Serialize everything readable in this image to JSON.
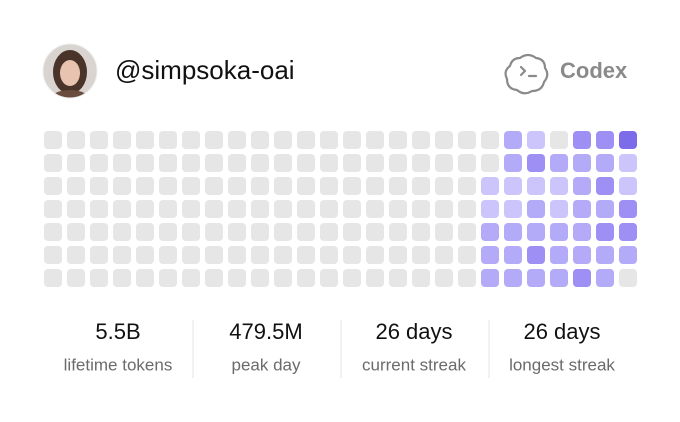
{
  "header": {
    "username": "@simpsoka-oai",
    "brand": "Codex"
  },
  "activity": {
    "palette": [
      "#e6e6e6",
      "#cbc5fb",
      "#b4abf8",
      "#9d8ff3",
      "#7d6ce9"
    ],
    "grid": [
      [
        0,
        0,
        0,
        0,
        0,
        0,
        0,
        0,
        0,
        0,
        0,
        0,
        0,
        0,
        0,
        0,
        0,
        0,
        0,
        0,
        2,
        1,
        0,
        3,
        3,
        4
      ],
      [
        0,
        0,
        0,
        0,
        0,
        0,
        0,
        0,
        0,
        0,
        0,
        0,
        0,
        0,
        0,
        0,
        0,
        0,
        0,
        0,
        2,
        3,
        2,
        2,
        2,
        1
      ],
      [
        0,
        0,
        0,
        0,
        0,
        0,
        0,
        0,
        0,
        0,
        0,
        0,
        0,
        0,
        0,
        0,
        0,
        0,
        0,
        1,
        1,
        1,
        1,
        2,
        3,
        1
      ],
      [
        0,
        0,
        0,
        0,
        0,
        0,
        0,
        0,
        0,
        0,
        0,
        0,
        0,
        0,
        0,
        0,
        0,
        0,
        0,
        1,
        1,
        2,
        1,
        2,
        2,
        3
      ],
      [
        0,
        0,
        0,
        0,
        0,
        0,
        0,
        0,
        0,
        0,
        0,
        0,
        0,
        0,
        0,
        0,
        0,
        0,
        0,
        2,
        2,
        2,
        2,
        2,
        3,
        3
      ],
      [
        0,
        0,
        0,
        0,
        0,
        0,
        0,
        0,
        0,
        0,
        0,
        0,
        0,
        0,
        0,
        0,
        0,
        0,
        0,
        2,
        2,
        3,
        2,
        2,
        2,
        2
      ],
      [
        0,
        0,
        0,
        0,
        0,
        0,
        0,
        0,
        0,
        0,
        0,
        0,
        0,
        0,
        0,
        0,
        0,
        0,
        0,
        2,
        2,
        2,
        2,
        3,
        2,
        0
      ]
    ]
  },
  "stats": [
    {
      "value": "5.5B",
      "label": "lifetime tokens"
    },
    {
      "value": "479.5M",
      "label": "peak day"
    },
    {
      "value": "26 days",
      "label": "current streak"
    },
    {
      "value": "26 days",
      "label": "longest streak"
    }
  ]
}
